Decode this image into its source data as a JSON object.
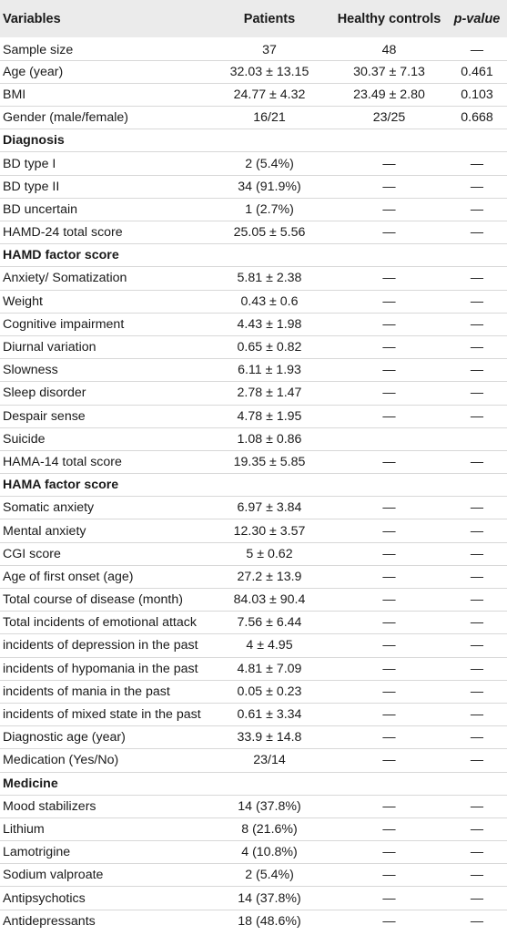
{
  "header": {
    "variables": "Variables",
    "patients": "Patients",
    "healthy_controls": "Healthy controls",
    "p_value": "p-value"
  },
  "rows": [
    {
      "label": "Sample size",
      "patients": "37",
      "controls": "48",
      "p": "—"
    },
    {
      "label": "Age (year)",
      "patients": "32.03 ± 13.15",
      "controls": "30.37 ± 7.13",
      "p": "0.461"
    },
    {
      "label": "BMI",
      "patients": "24.77 ± 4.32",
      "controls": "23.49 ± 2.80",
      "p": "0.103"
    },
    {
      "label": "Gender (male/female)",
      "patients": "16/21",
      "controls": "23/25",
      "p": "0.668"
    },
    {
      "label": "Diagnosis",
      "section": true
    },
    {
      "label": "BD type I",
      "patients": "2 (5.4%)",
      "controls": "—",
      "p": "—"
    },
    {
      "label": "BD type II",
      "patients": "34 (91.9%)",
      "controls": "—",
      "p": "—"
    },
    {
      "label": "BD uncertain",
      "patients": "1 (2.7%)",
      "controls": "—",
      "p": "—"
    },
    {
      "label": "HAMD-24 total score",
      "patients": "25.05 ± 5.56",
      "controls": "—",
      "p": "—"
    },
    {
      "label": "HAMD factor score",
      "section": true
    },
    {
      "label": "Anxiety/ Somatization",
      "patients": "5.81 ± 2.38",
      "controls": "—",
      "p": "—"
    },
    {
      "label": "Weight",
      "patients": "0.43 ± 0.6",
      "controls": "—",
      "p": "—"
    },
    {
      "label": "Cognitive impairment",
      "patients": "4.43 ± 1.98",
      "controls": "—",
      "p": "—"
    },
    {
      "label": "Diurnal variation",
      "patients": "0.65 ± 0.82",
      "controls": "—",
      "p": "—"
    },
    {
      "label": "Slowness",
      "patients": "6.11 ± 1.93",
      "controls": "—",
      "p": "—"
    },
    {
      "label": "Sleep disorder",
      "patients": "2.78 ± 1.47",
      "controls": "—",
      "p": "—"
    },
    {
      "label": "Despair sense",
      "patients": "4.78 ± 1.95",
      "controls": "—",
      "p": "—"
    },
    {
      "label": "Suicide",
      "patients": "1.08 ± 0.86",
      "controls": "",
      "p": ""
    },
    {
      "label": "HAMA-14 total score",
      "patients": "19.35 ± 5.85",
      "controls": "—",
      "p": "—"
    },
    {
      "label": "HAMA factor score",
      "section": true
    },
    {
      "label": "Somatic anxiety",
      "patients": "6.97 ± 3.84",
      "controls": "—",
      "p": "—"
    },
    {
      "label": "Mental anxiety",
      "patients": "12.30 ± 3.57",
      "controls": "—",
      "p": "—"
    },
    {
      "label": "CGI score",
      "patients": "5 ± 0.62",
      "controls": "—",
      "p": "—"
    },
    {
      "label": "Age of first onset (age)",
      "patients": "27.2 ± 13.9",
      "controls": "—",
      "p": "—"
    },
    {
      "label": "Total course of disease (month)",
      "patients": "84.03 ± 90.4",
      "controls": "—",
      "p": "—"
    },
    {
      "label": "Total incidents of emotional attack",
      "patients": "7.56 ± 6.44",
      "controls": "—",
      "p": "—"
    },
    {
      "label": "incidents of depression in the past",
      "patients": "4 ± 4.95",
      "controls": "—",
      "p": "—"
    },
    {
      "label": "incidents of hypomania in the past",
      "patients": "4.81 ± 7.09",
      "controls": "—",
      "p": "—"
    },
    {
      "label": "incidents of mania in the past",
      "patients": "0.05 ± 0.23",
      "controls": "—",
      "p": "—"
    },
    {
      "label": "incidents of mixed state in the past",
      "patients": "0.61 ± 3.34",
      "controls": "—",
      "p": "—"
    },
    {
      "label": "Diagnostic age (year)",
      "patients": "33.9 ± 14.8",
      "controls": "—",
      "p": "—"
    },
    {
      "label": "Medication (Yes/No)",
      "patients": "23/14",
      "controls": "—",
      "p": "—"
    },
    {
      "label": "Medicine",
      "section": true
    },
    {
      "label": "Mood stabilizers",
      "patients": "14 (37.8%)",
      "controls": "—",
      "p": "—"
    },
    {
      "label": "Lithium",
      "patients": "8 (21.6%)",
      "controls": "—",
      "p": "—"
    },
    {
      "label": "Lamotrigine",
      "patients": "4 (10.8%)",
      "controls": "—",
      "p": "—"
    },
    {
      "label": "Sodium valproate",
      "patients": "2 (5.4%)",
      "controls": "—",
      "p": "—"
    },
    {
      "label": "Antipsychotics",
      "patients": "14 (37.8%)",
      "controls": "—",
      "p": "—"
    },
    {
      "label": "Antidepressants",
      "patients": "18 (48.6%)",
      "controls": "—",
      "p": "—"
    }
  ]
}
